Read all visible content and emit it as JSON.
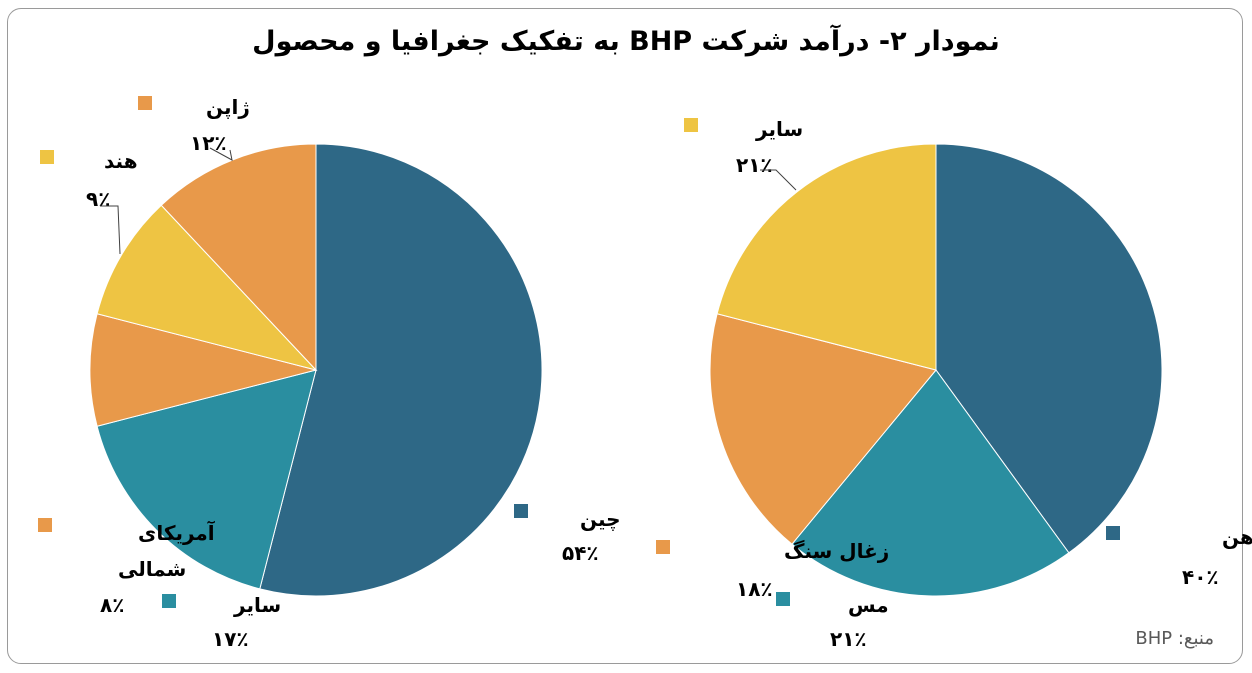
{
  "title": "نمودار ۲- درآمد شرکت BHP به تفکیک جغرافیا و محصول",
  "source": "منبع: BHP",
  "colors": {
    "dark_blue": "#2e6886",
    "teal": "#2a8ea0",
    "orange": "#e8994a",
    "yellow": "#eec443"
  },
  "chart_data": [
    {
      "type": "pie",
      "slices": [
        {
          "label": "چین",
          "pct_label": "۵۴٪",
          "value": 54,
          "color": "#2e6886"
        },
        {
          "label": "سایر",
          "pct_label": "۱۷٪",
          "value": 17,
          "color": "#2a8ea0"
        },
        {
          "label": "آمریکای شمالی",
          "pct_label": "۸٪",
          "value": 8,
          "color": "#e8994a"
        },
        {
          "label": "هند",
          "pct_label": "۹٪",
          "value": 9,
          "color": "#eec443"
        },
        {
          "label": "ژاپن",
          "pct_label": "۱۲٪",
          "value": 12,
          "color": "#e8994a"
        }
      ]
    },
    {
      "type": "pie",
      "slices": [
        {
          "label": "سنگ آهن",
          "pct_label": "۴۰٪",
          "value": 40,
          "color": "#2e6886"
        },
        {
          "label": "مس",
          "pct_label": "۲۱٪",
          "value": 21,
          "color": "#2a8ea0"
        },
        {
          "label": "زغال سنگ",
          "pct_label": "۱۸٪",
          "value": 18,
          "color": "#e8994a"
        },
        {
          "label": "سایر",
          "pct_label": "۲۱٪",
          "value": 21,
          "color": "#eec443"
        }
      ]
    }
  ]
}
